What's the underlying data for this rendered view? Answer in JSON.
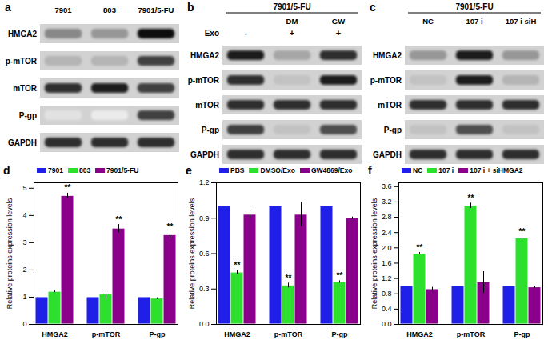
{
  "blots": [
    {
      "panel": "a",
      "lanes": [
        "7901",
        "803",
        "7901/5-FU"
      ],
      "rows": [
        "HMGA2",
        "p-mTOR",
        "mTOR",
        "P-gp",
        "GAPDH"
      ],
      "bands": [
        [
          0.55,
          0.5,
          0.95
        ],
        [
          0.4,
          0.4,
          0.8
        ],
        [
          0.85,
          0.9,
          0.8
        ],
        [
          0.2,
          0.15,
          0.8
        ],
        [
          0.85,
          0.85,
          0.85
        ]
      ]
    },
    {
      "panel": "b",
      "header": "7901/5-FU",
      "lanes": [
        null,
        "DM",
        "GW"
      ],
      "treatment": {
        "label": "Exo",
        "values": [
          "-",
          "+",
          "+"
        ]
      },
      "rows": [
        "HMGA2",
        "p-mTOR",
        "mTOR",
        "P-gp",
        "GAPDH"
      ],
      "bands": [
        [
          0.9,
          0.45,
          0.85
        ],
        [
          0.85,
          0.35,
          0.9
        ],
        [
          0.85,
          0.85,
          0.85
        ],
        [
          0.8,
          0.35,
          0.75
        ],
        [
          0.85,
          0.85,
          0.85
        ]
      ]
    },
    {
      "panel": "c",
      "header": "7901/5-FU",
      "lanes": [
        "NC",
        "107 i",
        "107 i siH"
      ],
      "rows": [
        "HMGA2",
        "p-mTOR",
        "mTOR",
        "P-gp",
        "GAPDH"
      ],
      "bands": [
        [
          0.5,
          0.9,
          0.5
        ],
        [
          0.35,
          0.9,
          0.4
        ],
        [
          0.85,
          0.85,
          0.85
        ],
        [
          0.35,
          0.75,
          0.35
        ],
        [
          0.85,
          0.85,
          0.85
        ]
      ]
    }
  ],
  "chart_data": [
    {
      "panel": "d",
      "type": "bar",
      "y_label": "Relative proteins expression levels",
      "categories": [
        "HMGA2",
        "p-mTOR",
        "P-gp"
      ],
      "series": [
        {
          "name": "7901",
          "color": "#1f1fe8",
          "values": [
            1,
            1,
            1
          ],
          "errors": [
            0,
            0,
            0
          ]
        },
        {
          "name": "803",
          "color": "#2ee02e",
          "values": [
            1.2,
            1.1,
            0.95
          ],
          "errors": [
            0.03,
            0.2,
            0.03
          ]
        },
        {
          "name": "7901/5-FU",
          "color": "#8b008b",
          "values": [
            4.72,
            3.52,
            3.28
          ],
          "errors": [
            0.1,
            0.15,
            0.12
          ]
        }
      ],
      "ylim": [
        0,
        5.2
      ],
      "yticks": [
        0,
        1,
        2,
        3,
        4,
        5
      ],
      "grid": false,
      "legend": "top",
      "annotations": [
        {
          "category": "HMGA2",
          "series": "7901/5-FU",
          "text": "**"
        },
        {
          "category": "p-mTOR",
          "series": "7901/5-FU",
          "text": "**"
        },
        {
          "category": "P-gp",
          "series": "7901/5-FU",
          "text": "**"
        }
      ]
    },
    {
      "panel": "e",
      "type": "bar",
      "y_label": "Relative proteins expression levels",
      "categories": [
        "HMGA2",
        "p-mTOR",
        "P-gp"
      ],
      "series": [
        {
          "name": "PBS",
          "color": "#1f1fe8",
          "values": [
            1,
            1,
            1
          ],
          "errors": [
            0,
            0,
            0
          ]
        },
        {
          "name": "DMSO/Exo",
          "color": "#2ee02e",
          "values": [
            0.44,
            0.33,
            0.36
          ],
          "errors": [
            0.02,
            0.02,
            0.01
          ]
        },
        {
          "name": "GW4869/Exo",
          "color": "#8b008b",
          "values": [
            0.93,
            0.93,
            0.9
          ],
          "errors": [
            0.03,
            0.1,
            0.01
          ]
        }
      ],
      "ylim": [
        0,
        1.2
      ],
      "yticks": [
        {
          "value": 0,
          "label": "0.0"
        },
        0.3,
        0.6,
        0.9,
        1.2
      ],
      "grid": false,
      "legend": "top",
      "annotations": [
        {
          "category": "HMGA2",
          "series": "DMSO/Exo",
          "text": "**"
        },
        {
          "category": "p-mTOR",
          "series": "DMSO/Exo",
          "text": "**"
        },
        {
          "category": "P-gp",
          "series": "DMSO/Exo",
          "text": "**"
        }
      ]
    },
    {
      "panel": "f",
      "type": "bar",
      "y_label": "Relative proteins expression levels",
      "categories": [
        "HMGA2",
        "p-mTOR",
        "P-gp"
      ],
      "series": [
        {
          "name": "NC",
          "color": "#1f1fe8",
          "values": [
            1,
            1,
            1
          ],
          "errors": [
            0,
            0,
            0
          ]
        },
        {
          "name": "107 i",
          "color": "#2ee02e",
          "values": [
            1.85,
            3.1,
            2.25
          ],
          "errors": [
            0.03,
            0.07,
            0.03
          ]
        },
        {
          "name": "107 i + siHMGA2",
          "color": "#8b008b",
          "values": [
            0.92,
            1.1,
            0.97
          ],
          "errors": [
            0.05,
            0.28,
            0.03
          ]
        }
      ],
      "ylim": [
        0,
        3.7
      ],
      "yticks": [
        {
          "value": 0,
          "label": "0.0"
        },
        0.4,
        0.8,
        1.2,
        1.6,
        {
          "value": 2,
          "label": "2.0"
        },
        2.4,
        2.8,
        3.2,
        3.6
      ],
      "grid": false,
      "legend": "top",
      "annotations": [
        {
          "category": "HMGA2",
          "series": "107 i",
          "text": "**"
        },
        {
          "category": "p-mTOR",
          "series": "107 i",
          "text": "**"
        },
        {
          "category": "P-gp",
          "series": "107 i",
          "text": "**"
        }
      ]
    }
  ]
}
